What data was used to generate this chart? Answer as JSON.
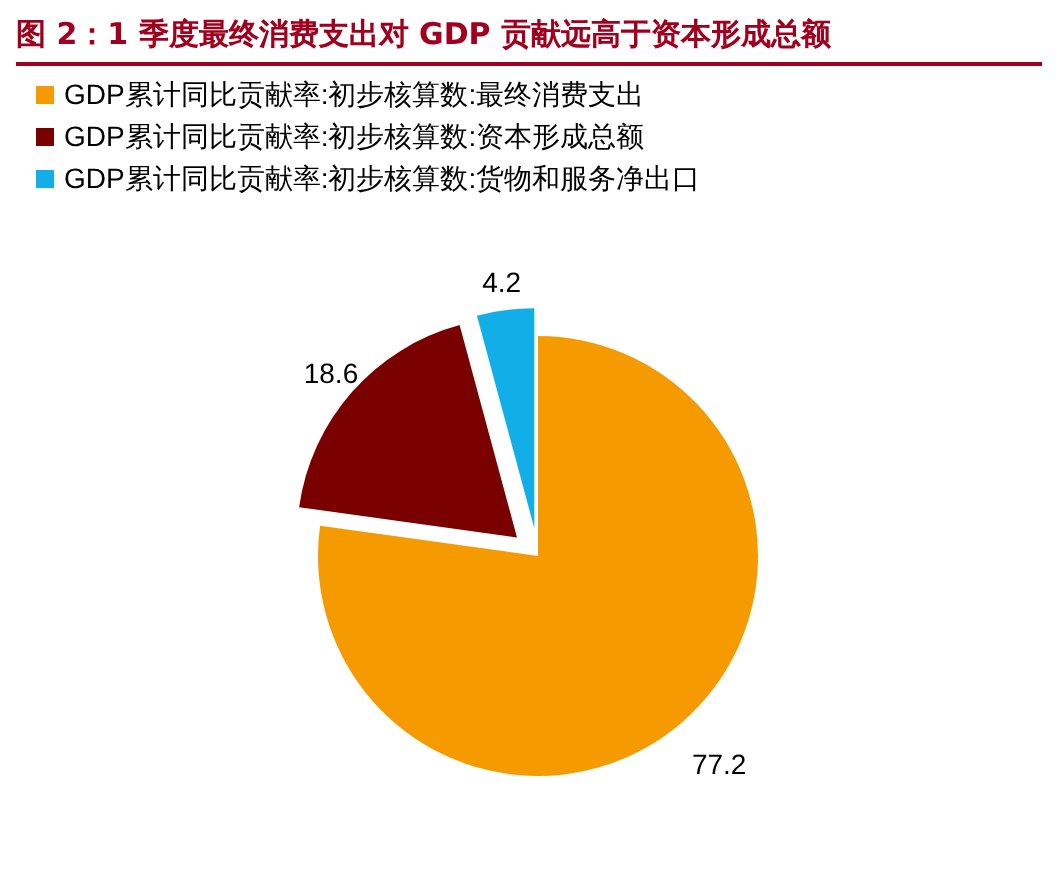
{
  "chart_data": {
    "type": "pie",
    "title": "图 2：1 季度最终消费支出对 GDP 贡献远高于资本形成总额",
    "categories": [
      "GDP累计同比贡献率:初步核算数:最终消费支出",
      "GDP累计同比贡献率:初步核算数:资本形成总额",
      "GDP累计同比贡献率:初步核算数:货物和服务净出口"
    ],
    "values": [
      77.2,
      18.6,
      4.2
    ],
    "colors": [
      "#f59a00",
      "#7a0000",
      "#12aee8"
    ],
    "data_labels": true,
    "legend": "top left"
  }
}
